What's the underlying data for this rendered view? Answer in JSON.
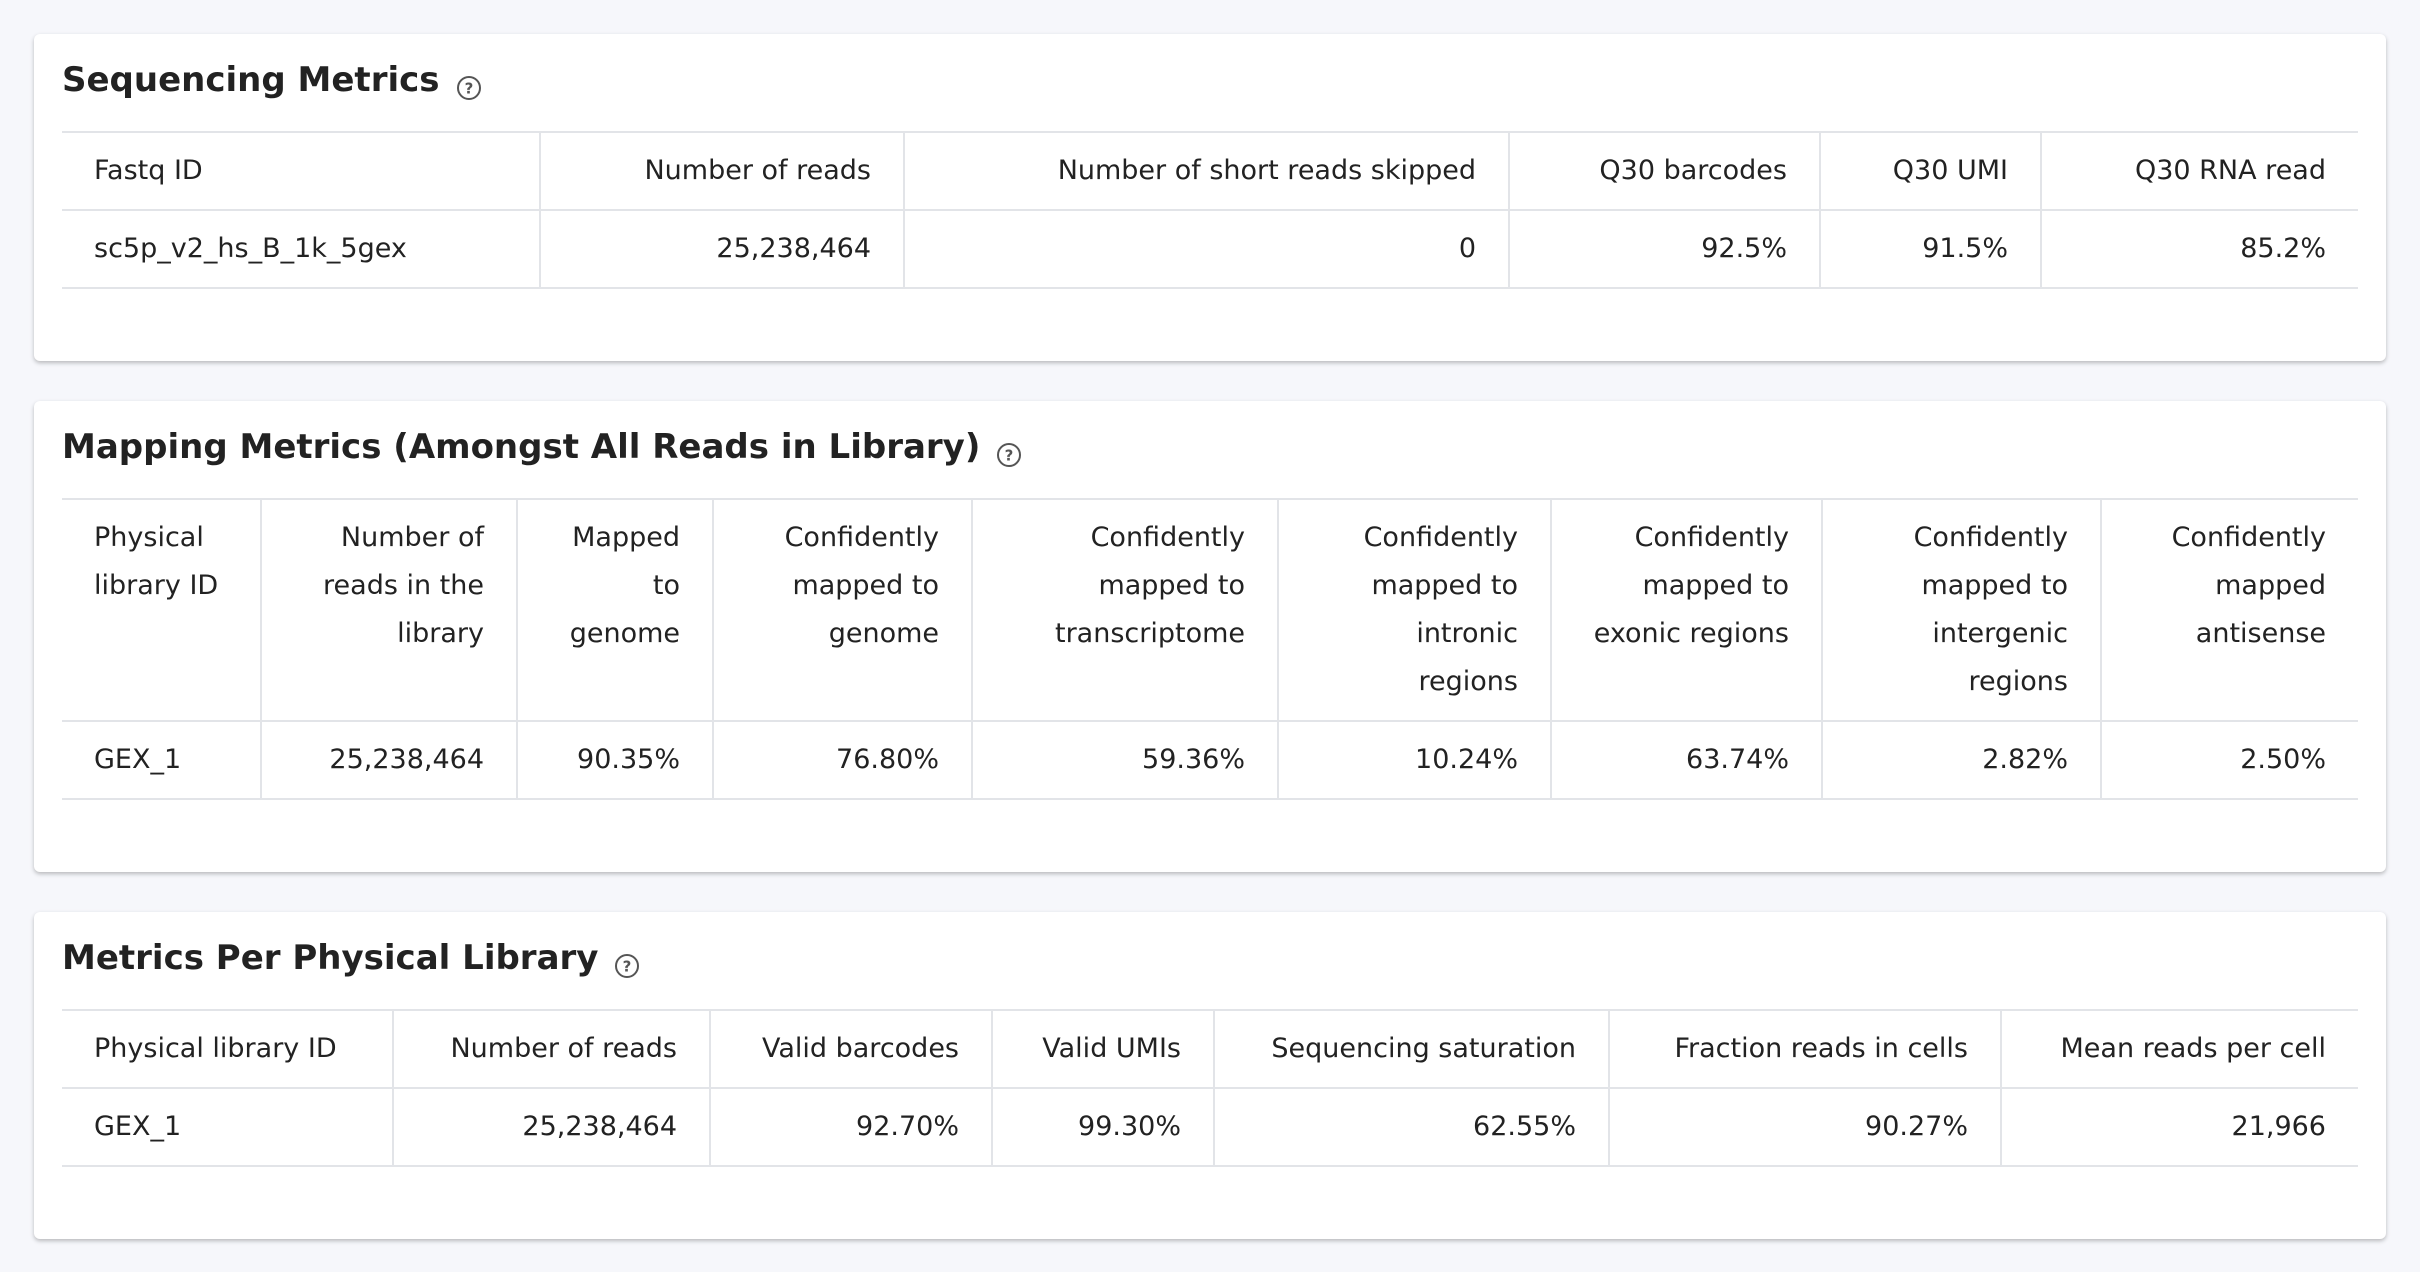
{
  "sections": [
    {
      "title": "Sequencing Metrics",
      "table": {
        "headers": [
          "Fastq ID",
          "Number of reads",
          "Number of short reads skipped",
          "Q30 barcodes",
          "Q30 UMI",
          "Q30 RNA read"
        ],
        "rows": [
          [
            "sc5p_v2_hs_B_1k_5gex",
            "25,238,464",
            "0",
            "92.5%",
            "91.5%",
            "85.2%"
          ]
        ]
      }
    },
    {
      "title": "Mapping Metrics (Amongst All Reads in Library)",
      "table": {
        "headers": [
          "Physical library ID",
          "Number of reads in the library",
          "Mapped to genome",
          "Confidently mapped to genome",
          "Confidently mapped to transcriptome",
          "Confidently mapped to intronic regions",
          "Confidently mapped to exonic regions",
          "Confidently mapped to intergenic regions",
          "Confidently mapped antisense"
        ],
        "rows": [
          [
            "GEX_1",
            "25,238,464",
            "90.35%",
            "76.80%",
            "59.36%",
            "10.24%",
            "63.74%",
            "2.82%",
            "2.50%"
          ]
        ]
      }
    },
    {
      "title": "Metrics Per Physical Library",
      "table": {
        "headers": [
          "Physical library ID",
          "Number of reads",
          "Valid barcodes",
          "Valid UMIs",
          "Sequencing saturation",
          "Fraction reads in cells",
          "Mean reads per cell"
        ],
        "rows": [
          [
            "GEX_1",
            "25,238,464",
            "92.70%",
            "99.30%",
            "62.55%",
            "90.27%",
            "21,966"
          ]
        ]
      }
    }
  ]
}
